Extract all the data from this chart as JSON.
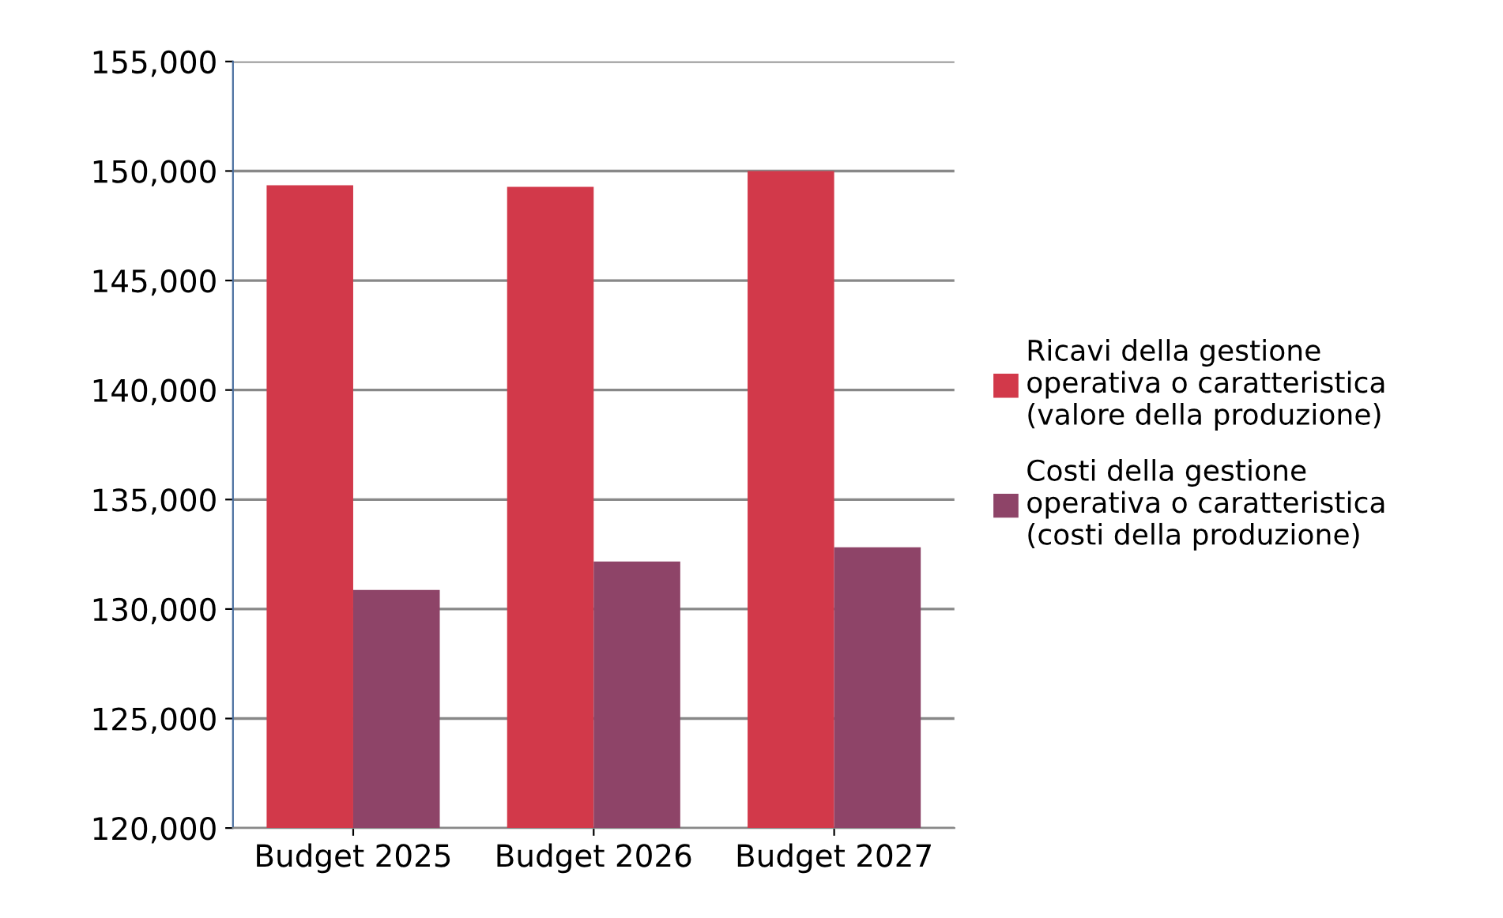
{
  "chart_data": {
    "type": "bar",
    "categories": [
      "Budget 2025",
      "Budget 2026",
      "Budget 2027"
    ],
    "series": [
      {
        "name": "Ricavi della gestione\noperativa o caratteristica\n(valore della produzione)",
        "color": "#d2394a",
        "values": [
          149350,
          149280,
          150000
        ]
      },
      {
        "name": "Costi della gestione\noperativa o caratteristica\n(costi della produzione)",
        "color": "#8e4468",
        "values": [
          130870,
          132170,
          132820
        ]
      }
    ],
    "ylim": [
      120000,
      155000
    ],
    "yticks": [
      {
        "value": 120000,
        "label": "120,000"
      },
      {
        "value": 125000,
        "label": "125,000"
      },
      {
        "value": 130000,
        "label": "130,000"
      },
      {
        "value": 135000,
        "label": "135,000"
      },
      {
        "value": 140000,
        "label": "140,000"
      },
      {
        "value": 145000,
        "label": "145,000"
      },
      {
        "value": 150000,
        "label": "150,000"
      },
      {
        "value": 155000,
        "label": "155,000"
      }
    ],
    "grid": "y",
    "legend": "right"
  }
}
